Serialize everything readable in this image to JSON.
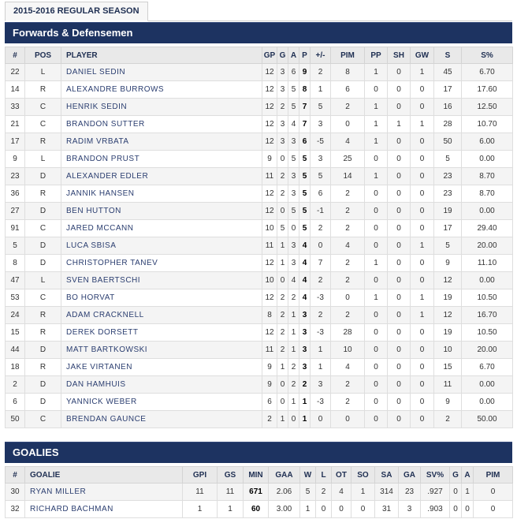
{
  "tab": {
    "label": "2015-2016 REGULAR SEASON"
  },
  "skaters": {
    "title": "Forwards & Defensemen",
    "columns": [
      "#",
      "POS",
      "PLAYER",
      "GP",
      "G",
      "A",
      "P",
      "+/-",
      "PIM",
      "PP",
      "SH",
      "GW",
      "S",
      "S%"
    ],
    "rows": [
      [
        "22",
        "L",
        "DANIEL SEDIN",
        "12",
        "3",
        "6",
        "9",
        "2",
        "8",
        "1",
        "0",
        "1",
        "45",
        "6.70"
      ],
      [
        "14",
        "R",
        "ALEXANDRE BURROWS",
        "12",
        "3",
        "5",
        "8",
        "1",
        "6",
        "0",
        "0",
        "0",
        "17",
        "17.60"
      ],
      [
        "33",
        "C",
        "HENRIK SEDIN",
        "12",
        "2",
        "5",
        "7",
        "5",
        "2",
        "1",
        "0",
        "0",
        "16",
        "12.50"
      ],
      [
        "21",
        "C",
        "BRANDON SUTTER",
        "12",
        "3",
        "4",
        "7",
        "3",
        "0",
        "1",
        "1",
        "1",
        "28",
        "10.70"
      ],
      [
        "17",
        "R",
        "RADIM VRBATA",
        "12",
        "3",
        "3",
        "6",
        "-5",
        "4",
        "1",
        "0",
        "0",
        "50",
        "6.00"
      ],
      [
        "9",
        "L",
        "BRANDON PRUST",
        "9",
        "0",
        "5",
        "5",
        "3",
        "25",
        "0",
        "0",
        "0",
        "5",
        "0.00"
      ],
      [
        "23",
        "D",
        "ALEXANDER EDLER",
        "11",
        "2",
        "3",
        "5",
        "5",
        "14",
        "1",
        "0",
        "0",
        "23",
        "8.70"
      ],
      [
        "36",
        "R",
        "JANNIK HANSEN",
        "12",
        "2",
        "3",
        "5",
        "6",
        "2",
        "0",
        "0",
        "0",
        "23",
        "8.70"
      ],
      [
        "27",
        "D",
        "BEN HUTTON",
        "12",
        "0",
        "5",
        "5",
        "-1",
        "2",
        "0",
        "0",
        "0",
        "19",
        "0.00"
      ],
      [
        "91",
        "C",
        "JARED MCCANN",
        "10",
        "5",
        "0",
        "5",
        "2",
        "2",
        "0",
        "0",
        "0",
        "17",
        "29.40"
      ],
      [
        "5",
        "D",
        "LUCA SBISA",
        "11",
        "1",
        "3",
        "4",
        "0",
        "4",
        "0",
        "0",
        "1",
        "5",
        "20.00"
      ],
      [
        "8",
        "D",
        "CHRISTOPHER TANEV",
        "12",
        "1",
        "3",
        "4",
        "7",
        "2",
        "1",
        "0",
        "0",
        "9",
        "11.10"
      ],
      [
        "47",
        "L",
        "SVEN BAERTSCHI",
        "10",
        "0",
        "4",
        "4",
        "2",
        "2",
        "0",
        "0",
        "0",
        "12",
        "0.00"
      ],
      [
        "53",
        "C",
        "BO HORVAT",
        "12",
        "2",
        "2",
        "4",
        "-3",
        "0",
        "1",
        "0",
        "1",
        "19",
        "10.50"
      ],
      [
        "24",
        "R",
        "ADAM CRACKNELL",
        "8",
        "2",
        "1",
        "3",
        "2",
        "2",
        "0",
        "0",
        "1",
        "12",
        "16.70"
      ],
      [
        "15",
        "R",
        "DEREK DORSETT",
        "12",
        "2",
        "1",
        "3",
        "-3",
        "28",
        "0",
        "0",
        "0",
        "19",
        "10.50"
      ],
      [
        "44",
        "D",
        "MATT BARTKOWSKI",
        "11",
        "2",
        "1",
        "3",
        "1",
        "10",
        "0",
        "0",
        "0",
        "10",
        "20.00"
      ],
      [
        "18",
        "R",
        "JAKE VIRTANEN",
        "9",
        "1",
        "2",
        "3",
        "1",
        "4",
        "0",
        "0",
        "0",
        "15",
        "6.70"
      ],
      [
        "2",
        "D",
        "DAN HAMHUIS",
        "9",
        "0",
        "2",
        "2",
        "3",
        "2",
        "0",
        "0",
        "0",
        "11",
        "0.00"
      ],
      [
        "6",
        "D",
        "YANNICK WEBER",
        "6",
        "0",
        "1",
        "1",
        "-3",
        "2",
        "0",
        "0",
        "0",
        "9",
        "0.00"
      ],
      [
        "50",
        "C",
        "BRENDAN GAUNCE",
        "2",
        "1",
        "0",
        "1",
        "0",
        "0",
        "0",
        "0",
        "0",
        "2",
        "50.00"
      ]
    ]
  },
  "goalies": {
    "title": "GOALIES",
    "columns": [
      "#",
      "GOALIE",
      "GPI",
      "GS",
      "MIN",
      "GAA",
      "W",
      "L",
      "OT",
      "SO",
      "SA",
      "GA",
      "SV%",
      "G",
      "A",
      "PIM"
    ],
    "rows": [
      [
        "30",
        "RYAN MILLER",
        "11",
        "11",
        "671",
        "2.06",
        "5",
        "2",
        "4",
        "1",
        "314",
        "23",
        ".927",
        "0",
        "1",
        "0"
      ],
      [
        "32",
        "RICHARD BACHMAN",
        "1",
        "1",
        "60",
        "3.00",
        "1",
        "0",
        "0",
        "0",
        "31",
        "3",
        ".903",
        "0",
        "0",
        "0"
      ]
    ]
  }
}
